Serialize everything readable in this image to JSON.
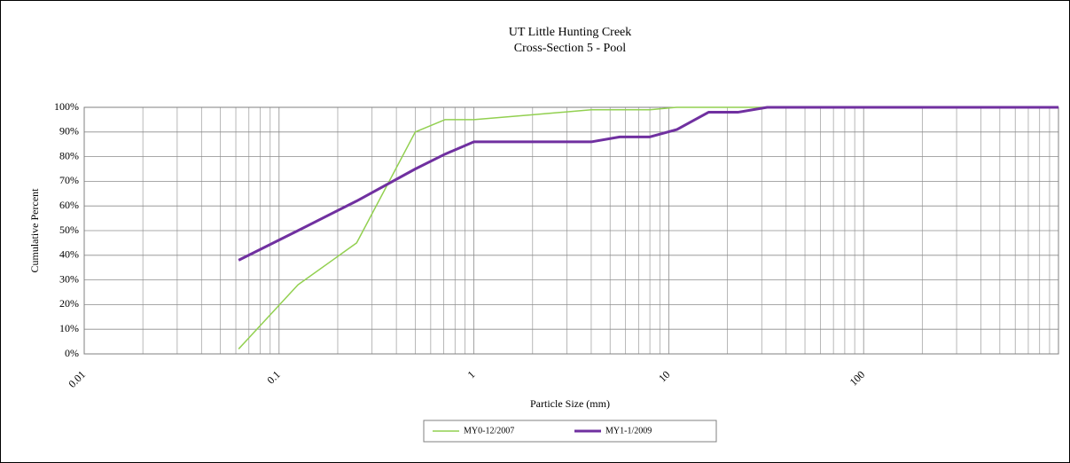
{
  "chart_data": {
    "type": "line",
    "title": "UT Little Hunting Creek",
    "subtitle": "Cross-Section 5 - Pool",
    "x_label": "Particle Size (mm)",
    "y_label": "Cumulative Percent",
    "x": [
      0.062,
      0.125,
      0.25,
      0.5,
      0.71,
      1,
      2,
      4,
      5.6,
      8,
      11,
      16,
      22.6,
      32,
      1000
    ],
    "series": [
      {
        "name": "MY0-12/2007",
        "color": "#92d050",
        "width": 1.5,
        "values": [
          2,
          28,
          45,
          90,
          95,
          95,
          97,
          99,
          99,
          99,
          100,
          100,
          100,
          100,
          100
        ]
      },
      {
        "name": "MY1-1/2009",
        "color": "#7030a0",
        "width": 3,
        "values": [
          38,
          50,
          62,
          75,
          81,
          86,
          86,
          86,
          88,
          88,
          91,
          98,
          98,
          100,
          100
        ]
      }
    ],
    "xlog": true,
    "xlim": [
      0.01,
      1000
    ],
    "xticks": [
      0.01,
      0.1,
      1,
      10,
      100
    ],
    "ylim": [
      0,
      100
    ],
    "yticks": [
      {
        "value": 0,
        "label": "0%"
      },
      {
        "value": 10,
        "label": "10%"
      },
      {
        "value": 20,
        "label": "20%"
      },
      {
        "value": 30,
        "label": "30%"
      },
      {
        "value": 40,
        "label": "40%"
      },
      {
        "value": 50,
        "label": "50%"
      },
      {
        "value": 60,
        "label": "60%"
      },
      {
        "value": 70,
        "label": "70%"
      },
      {
        "value": 80,
        "label": "80%"
      },
      {
        "value": 90,
        "label": "90%"
      },
      {
        "value": 100,
        "label": "100%"
      }
    ],
    "grid": true,
    "legend": "bottom"
  }
}
